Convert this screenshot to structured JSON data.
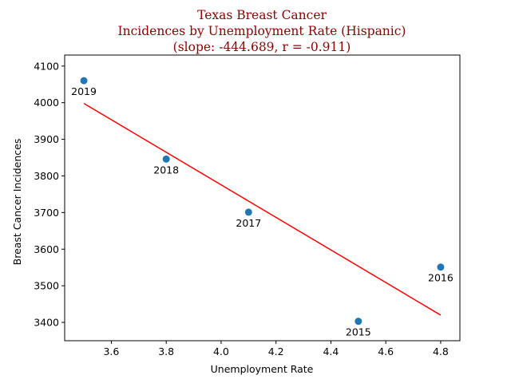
{
  "chart_data": {
    "type": "scatter",
    "title_lines": [
      "Texas Breast Cancer",
      "Incidences by Unemployment Rate (Hispanic)",
      "(slope: -444.689, r = -0.911)"
    ],
    "title_color": "#8b0000",
    "xlabel": "Unemployment Rate",
    "ylabel": "Breast Cancer Incidences",
    "xlim": [
      3.43,
      4.87
    ],
    "ylim": [
      3350,
      4130
    ],
    "xticks": [
      3.6,
      3.8,
      4.0,
      4.2,
      4.4,
      4.6,
      4.8
    ],
    "yticks": [
      3400,
      3500,
      3600,
      3700,
      3800,
      3900,
      4000,
      4100
    ],
    "grid": false,
    "point_color": "#1f77b4",
    "points": [
      {
        "x": 3.5,
        "y": 4060,
        "label": "2019"
      },
      {
        "x": 3.8,
        "y": 3846,
        "label": "2018"
      },
      {
        "x": 4.1,
        "y": 3701,
        "label": "2017"
      },
      {
        "x": 4.5,
        "y": 3403,
        "label": "2015"
      },
      {
        "x": 4.8,
        "y": 3551,
        "label": "2016"
      }
    ],
    "trendline": {
      "color": "#ff0000",
      "slope": -444.689,
      "intercept": 5554.4,
      "x_range": [
        3.5,
        4.8
      ]
    }
  }
}
